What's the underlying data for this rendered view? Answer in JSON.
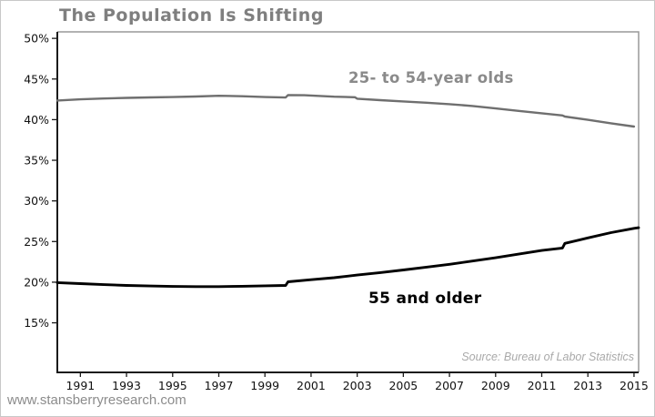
{
  "page": {
    "footer_url": "www.stansberryresearch.com"
  },
  "colors": {
    "title_text": "#7f7f7f",
    "series_gray": "#6f6f6f",
    "series_black": "#000000",
    "source_text": "#a9a9a9",
    "footer_text": "#8c8c8c",
    "frame_light": "#999999",
    "frame_dark": "#1a1a1a",
    "tick_text": "#111111"
  },
  "chart_data": {
    "type": "line",
    "title": "The Population Is Shifting",
    "source": "Source: Bureau of Labor Statistics",
    "legend_position": "inline-annotations",
    "grid": false,
    "x_axis": {
      "range": [
        1990,
        2015.2
      ],
      "ticks": [
        1991,
        1993,
        1995,
        1997,
        1999,
        2001,
        2003,
        2005,
        2007,
        2009,
        2011,
        2013,
        2015
      ],
      "labels": [
        "1991",
        "1993",
        "1995",
        "1997",
        "1999",
        "2001",
        "2003",
        "2005",
        "2007",
        "2009",
        "2011",
        "2013",
        "2015"
      ]
    },
    "y_axis": {
      "range": [
        8.9,
        50.8
      ],
      "unit": "%",
      "ticks": [
        15,
        20,
        25,
        30,
        35,
        40,
        45,
        50
      ],
      "labels": [
        "15%",
        "20%",
        "25%",
        "30%",
        "35%",
        "40%",
        "45%",
        "50%"
      ]
    },
    "series": [
      {
        "name": "25- to 54-year olds",
        "color": "#6f6f6f",
        "points": [
          [
            1990,
            42.35
          ],
          [
            1991,
            42.5
          ],
          [
            1992,
            42.6
          ],
          [
            1993,
            42.68
          ],
          [
            1994,
            42.73
          ],
          [
            1995,
            42.78
          ],
          [
            1996,
            42.85
          ],
          [
            1997,
            42.93
          ],
          [
            1998,
            42.88
          ],
          [
            1999,
            42.78
          ],
          [
            1999.9,
            42.72
          ],
          [
            2000,
            43.02
          ],
          [
            2000.7,
            43.0
          ],
          [
            2001,
            42.97
          ],
          [
            2002,
            42.82
          ],
          [
            2002.9,
            42.76
          ],
          [
            2003,
            42.58
          ],
          [
            2004,
            42.4
          ],
          [
            2005,
            42.24
          ],
          [
            2006,
            42.08
          ],
          [
            2007,
            41.9
          ],
          [
            2008,
            41.68
          ],
          [
            2009,
            41.38
          ],
          [
            2010,
            41.08
          ],
          [
            2011,
            40.78
          ],
          [
            2011.9,
            40.52
          ],
          [
            2012,
            40.38
          ],
          [
            2013,
            39.98
          ],
          [
            2014,
            39.55
          ],
          [
            2015,
            39.15
          ]
        ]
      },
      {
        "name": "55 and older",
        "color": "#000000",
        "points": [
          [
            1990,
            19.95
          ],
          [
            1991,
            19.82
          ],
          [
            1992,
            19.7
          ],
          [
            1993,
            19.6
          ],
          [
            1994,
            19.53
          ],
          [
            1995,
            19.48
          ],
          [
            1996,
            19.45
          ],
          [
            1997,
            19.45
          ],
          [
            1998,
            19.5
          ],
          [
            1999,
            19.55
          ],
          [
            1999.9,
            19.6
          ],
          [
            2000,
            20.05
          ],
          [
            2001,
            20.3
          ],
          [
            2002,
            20.55
          ],
          [
            2003,
            20.88
          ],
          [
            2004,
            21.18
          ],
          [
            2005,
            21.5
          ],
          [
            2006,
            21.85
          ],
          [
            2007,
            22.2
          ],
          [
            2008,
            22.6
          ],
          [
            2009,
            23.0
          ],
          [
            2010,
            23.45
          ],
          [
            2011,
            23.9
          ],
          [
            2011.9,
            24.2
          ],
          [
            2012,
            24.78
          ],
          [
            2013,
            25.45
          ],
          [
            2014,
            26.1
          ],
          [
            2015,
            26.62
          ],
          [
            2015.2,
            26.7
          ]
        ]
      }
    ]
  }
}
